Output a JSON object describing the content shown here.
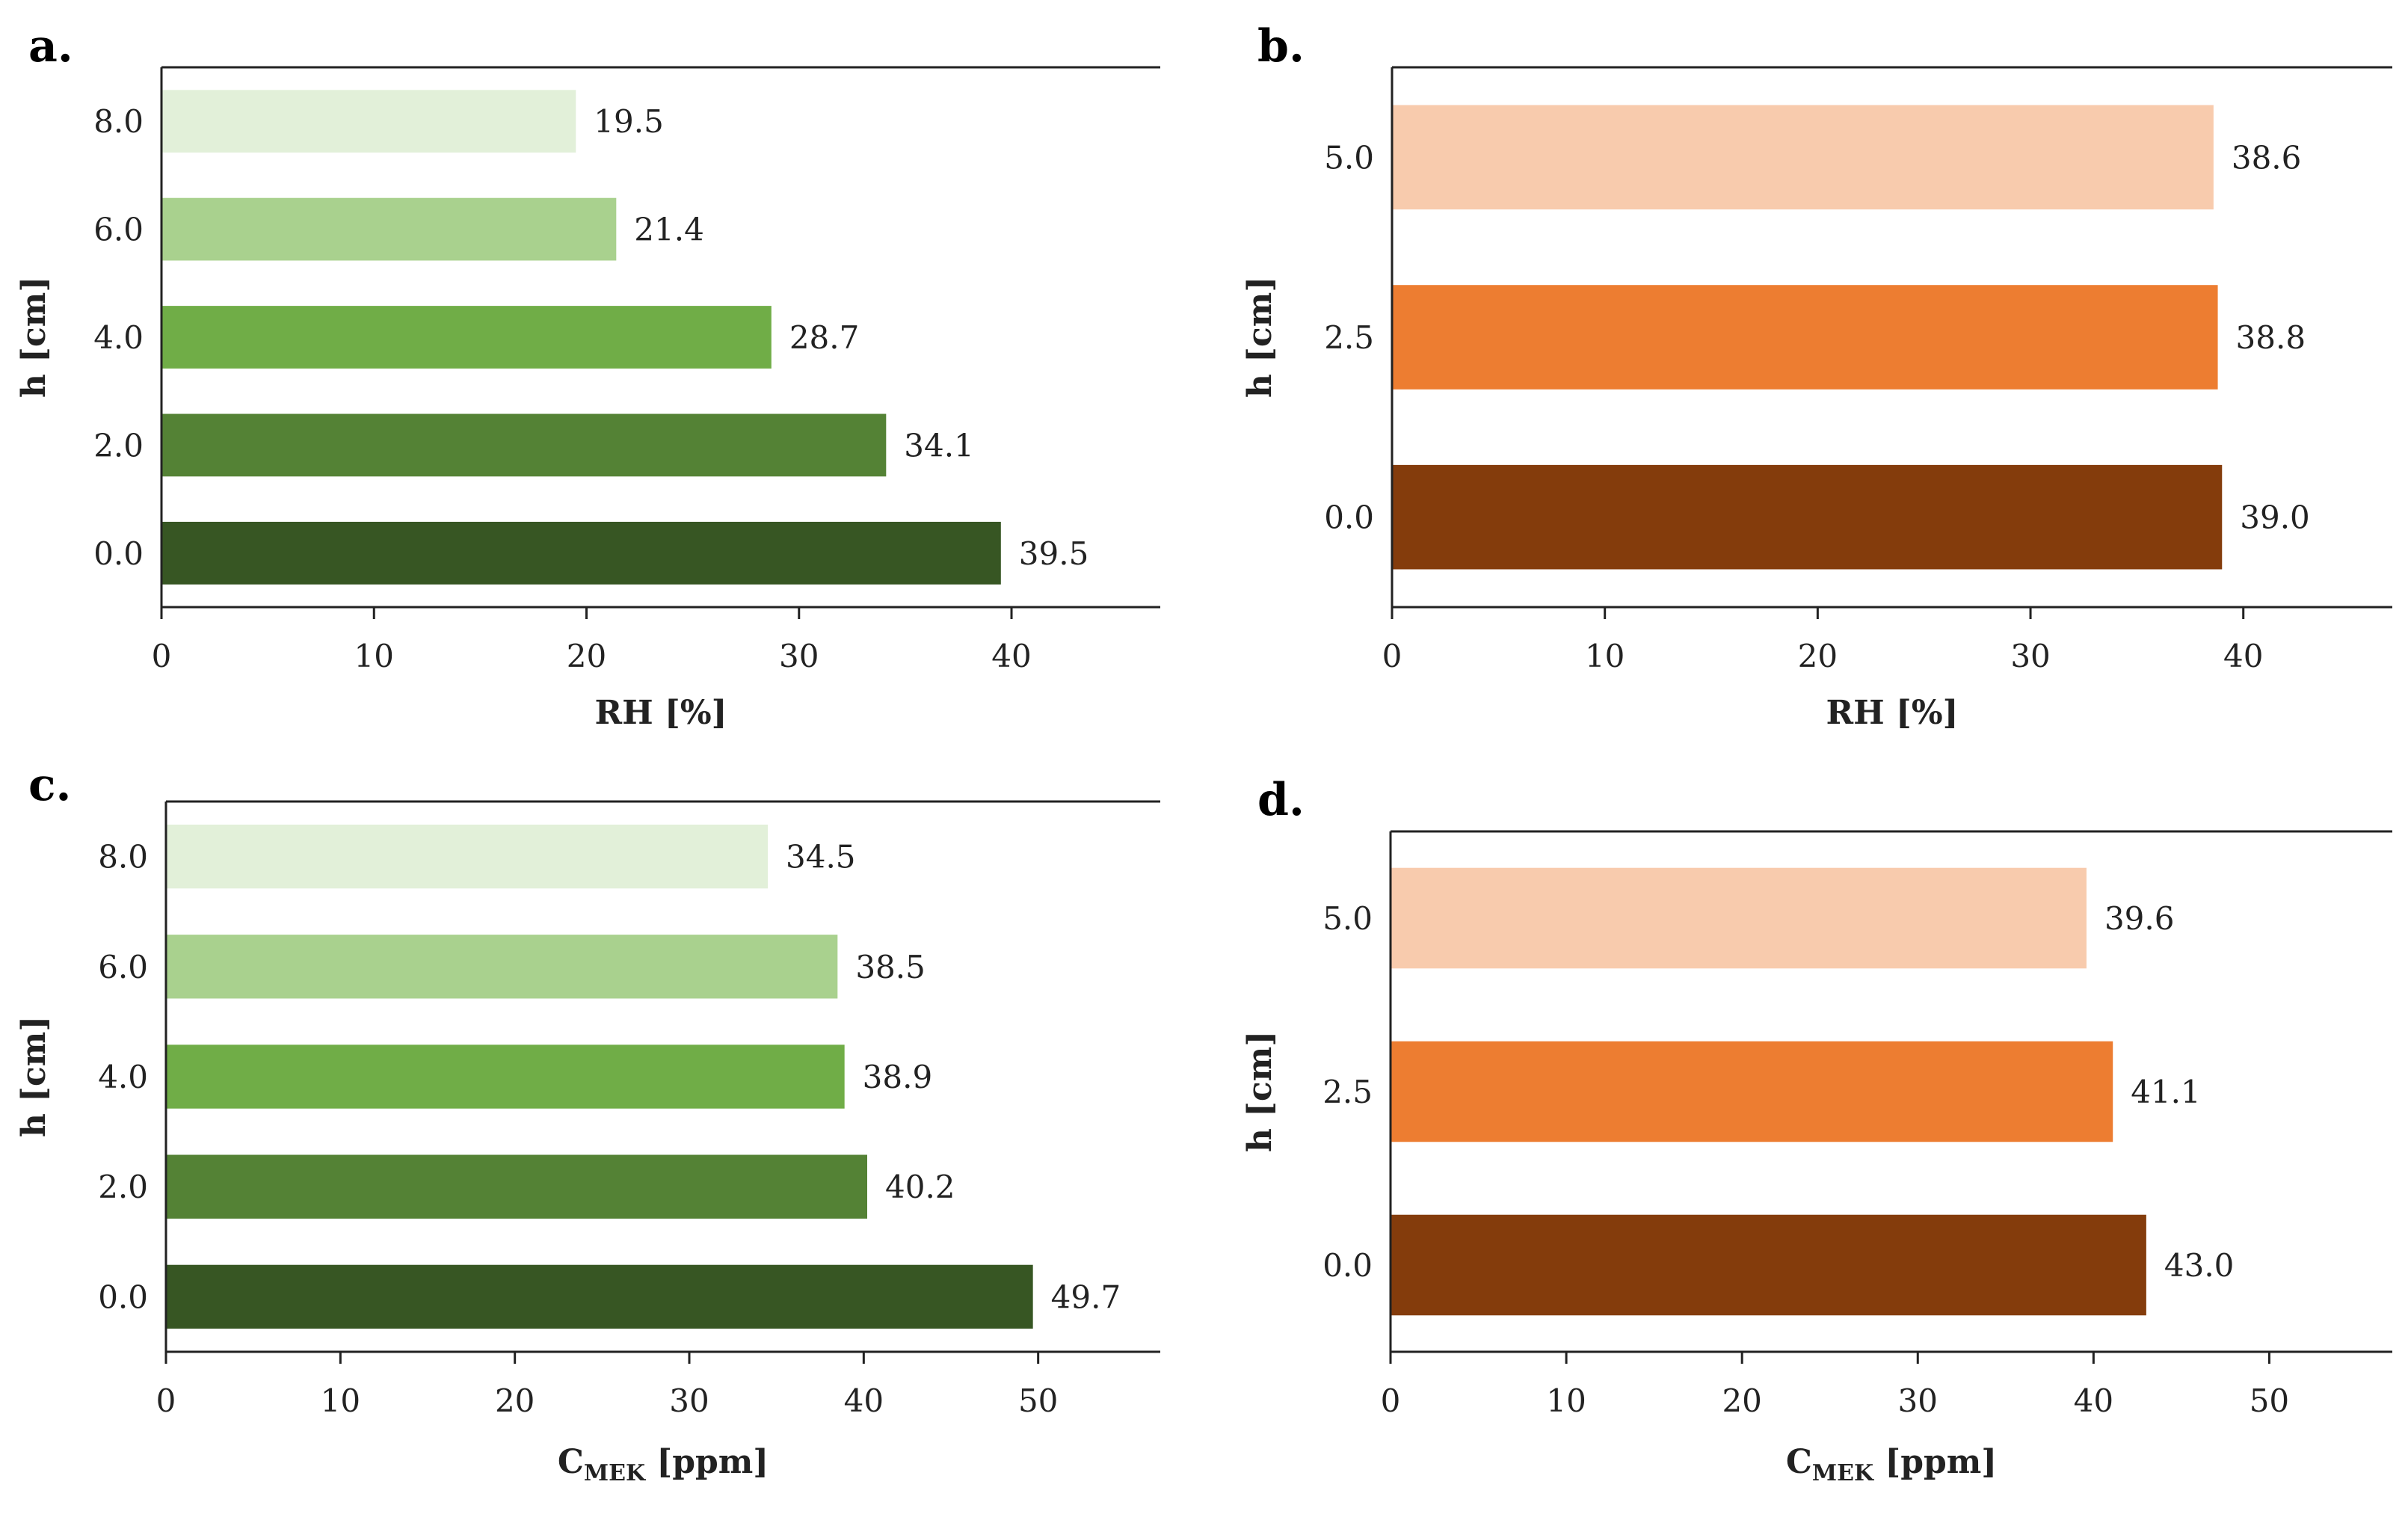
{
  "chart_data": [
    {
      "panel": "a.",
      "type": "bar",
      "orientation": "horizontal",
      "categories": [
        "8.0",
        "6.0",
        "4.0",
        "2.0",
        "0.0"
      ],
      "values": [
        19.5,
        21.4,
        28.7,
        34.1,
        39.5
      ],
      "value_labels": [
        "19.5",
        "21.4",
        "28.7",
        "34.1",
        "39.5"
      ],
      "colors": [
        "#e2f0d9",
        "#a9d18e",
        "#70ad47",
        "#548235",
        "#375623"
      ],
      "xlabel": "RH [%]",
      "ylabel": "h [cm]",
      "xlim": [
        0,
        47
      ],
      "xticks": [
        0,
        10,
        20,
        30,
        40
      ],
      "xtick_labels": [
        "0",
        "10",
        "20",
        "30",
        "40"
      ],
      "grid": false,
      "legend": "none"
    },
    {
      "panel": "b.",
      "type": "bar",
      "orientation": "horizontal",
      "categories": [
        "5.0",
        "2.5",
        "0.0"
      ],
      "values": [
        38.6,
        38.8,
        39.0
      ],
      "value_labels": [
        "38.6",
        "38.8",
        "39.0"
      ],
      "colors": [
        "#f8cbad",
        "#ed7d31",
        "#843c0c"
      ],
      "xlabel": "RH [%]",
      "ylabel": "h [cm]",
      "xlim": [
        0,
        47
      ],
      "xticks": [
        0,
        10,
        20,
        30,
        40
      ],
      "xtick_labels": [
        "0",
        "10",
        "20",
        "30",
        "40"
      ],
      "grid": false,
      "legend": "none"
    },
    {
      "panel": "c.",
      "type": "bar",
      "orientation": "horizontal",
      "categories": [
        "8.0",
        "6.0",
        "4.0",
        "2.0",
        "0.0"
      ],
      "values": [
        34.5,
        38.5,
        38.9,
        40.2,
        49.7
      ],
      "value_labels": [
        "34.5",
        "38.5",
        "38.9",
        "40.2",
        "49.7"
      ],
      "colors": [
        "#e2f0d9",
        "#a9d18e",
        "#70ad47",
        "#548235",
        "#375623"
      ],
      "xlabel_main": "C",
      "xlabel_sub": "MEK",
      "xlabel_unit": "[ppm]",
      "ylabel": "h [cm]",
      "xlim": [
        0,
        57
      ],
      "xticks": [
        0,
        10,
        20,
        30,
        40,
        50
      ],
      "xtick_labels": [
        "0",
        "10",
        "20",
        "30",
        "40",
        "50"
      ],
      "grid": false,
      "legend": "none"
    },
    {
      "panel": "d.",
      "type": "bar",
      "orientation": "horizontal",
      "categories": [
        "5.0",
        "2.5",
        "0.0"
      ],
      "values": [
        39.6,
        41.1,
        43.0
      ],
      "value_labels": [
        "39.6",
        "41.1",
        "43.0"
      ],
      "colors": [
        "#f8cbad",
        "#ed7d31",
        "#843c0c"
      ],
      "xlabel_main": "C",
      "xlabel_sub": "MEK",
      "xlabel_unit": "[ppm]",
      "ylabel": "h [cm]",
      "xlim": [
        0,
        57
      ],
      "xticks": [
        0,
        10,
        20,
        30,
        40,
        50
      ],
      "xtick_labels": [
        "0",
        "10",
        "20",
        "30",
        "40",
        "50"
      ],
      "grid": false,
      "legend": "none"
    }
  ]
}
